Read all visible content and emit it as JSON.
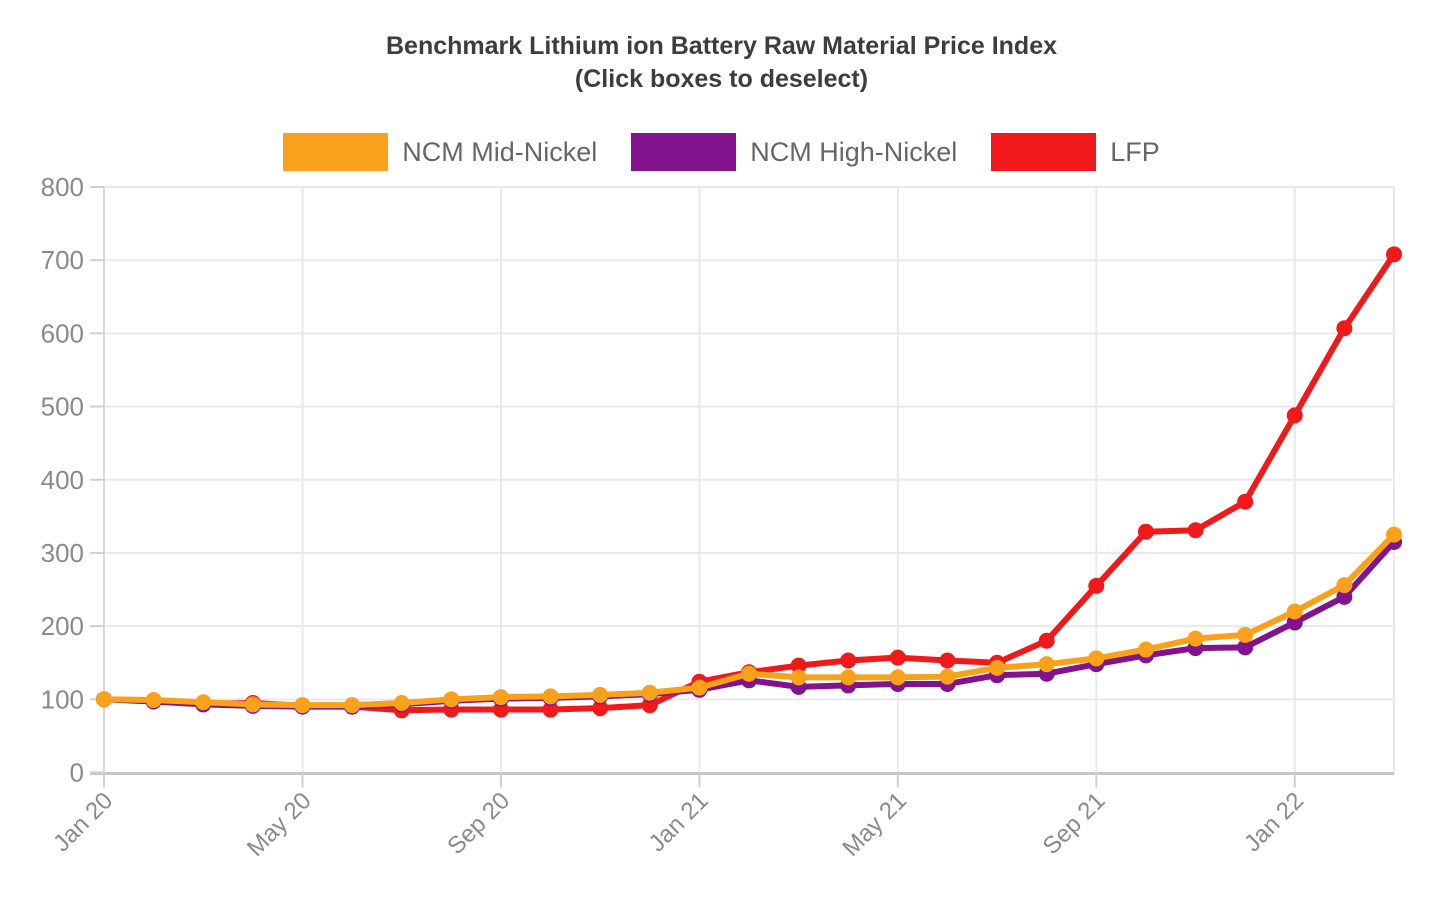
{
  "header": {
    "title": "Benchmark Lithium ion Battery Raw Material Price Index",
    "subtitle": "(Click boxes to deselect)"
  },
  "legend": {
    "position": "top",
    "items": [
      {
        "label": "NCM Mid-Nickel",
        "color": "#F9A11B"
      },
      {
        "label": "NCM High-Nickel",
        "color": "#82128E"
      },
      {
        "label": "LFP",
        "color": "#F11919"
      }
    ]
  },
  "colors": {
    "title_text": "#3D3D3D",
    "legend_text": "#666666",
    "axis_label": "#8A8A8A",
    "gridline": "#E9E9E9",
    "axis_line": "#C6C6C6",
    "tick_mark": "#CFCFCF"
  },
  "chart_data": {
    "type": "line",
    "title": "Benchmark Lithium ion Battery Raw Material Price Index",
    "subtitle": "(Click boxes to deselect)",
    "x": [
      "Jan 20",
      "Feb 20",
      "Mar 20",
      "Apr 20",
      "May 20",
      "Jun 20",
      "Jul 20",
      "Aug 20",
      "Sep 20",
      "Oct 20",
      "Nov 20",
      "Dec 20",
      "Jan 21",
      "Feb 21",
      "Mar 21",
      "Apr 21",
      "May 21",
      "Jun 21",
      "Jul 21",
      "Aug 21",
      "Sep 21",
      "Oct 21",
      "Nov 21",
      "Dec 21",
      "Jan 22",
      "Feb 22",
      "Mar 22"
    ],
    "x_axis_ticks": [
      "Jan 20",
      "May 20",
      "Sep 20",
      "Jan 21",
      "May 21",
      "Sep 21",
      "Jan 22"
    ],
    "x_axis_tick_indices": [
      0,
      4,
      8,
      12,
      16,
      20,
      24
    ],
    "series": [
      {
        "name": "NCM Mid-Nickel",
        "color": "#F9A11B",
        "values": [
          100,
          99,
          96,
          93,
          92,
          92,
          95,
          100,
          103,
          104,
          106,
          109,
          116,
          135,
          130,
          130,
          130,
          131,
          143,
          148,
          156,
          168,
          183,
          188,
          220,
          256,
          325
        ]
      },
      {
        "name": "NCM High-Nickel",
        "color": "#82128E",
        "values": [
          100,
          97,
          93,
          91,
          90,
          90,
          93,
          98,
          101,
          102,
          104,
          107,
          113,
          126,
          117,
          119,
          121,
          121,
          133,
          135,
          148,
          160,
          170,
          171,
          205,
          240,
          315
        ]
      },
      {
        "name": "LFP",
        "color": "#F11919",
        "values": [
          100,
          98,
          94,
          95,
          91,
          90,
          85,
          86,
          86,
          86,
          88,
          92,
          124,
          137,
          146,
          153,
          157,
          153,
          150,
          180,
          255,
          329,
          331,
          370,
          488,
          607,
          708
        ]
      }
    ],
    "ylim": [
      0,
      800
    ],
    "y_ticks": [
      0,
      100,
      200,
      300,
      400,
      500,
      600,
      700,
      800
    ],
    "xlabel": "",
    "ylabel": "",
    "grid": true,
    "legend_position": "top",
    "marker": "circle"
  }
}
